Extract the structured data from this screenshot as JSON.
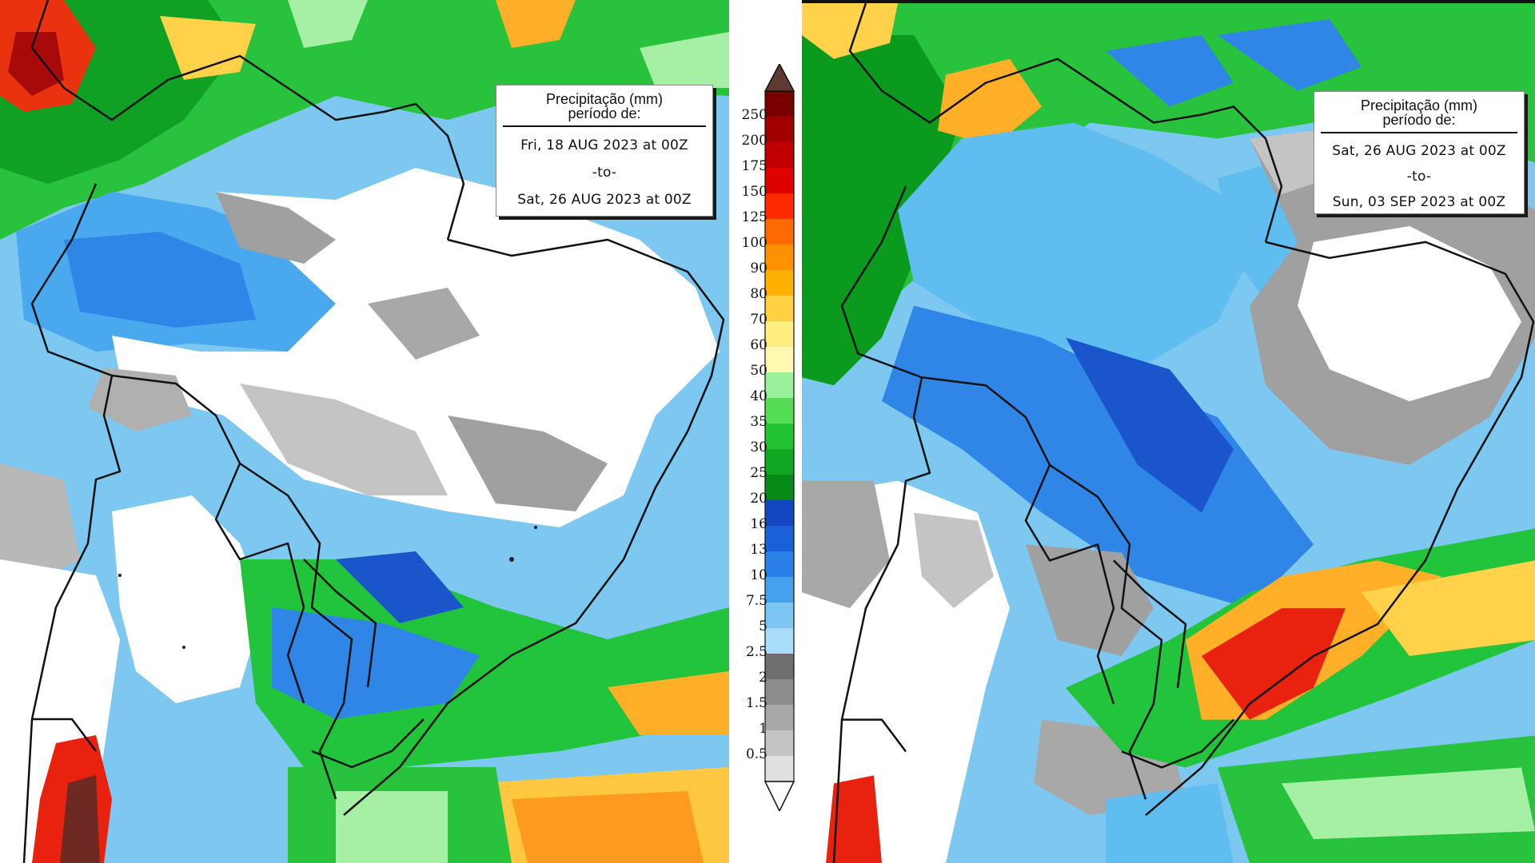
{
  "colors": {
    "white": "#ffffff",
    "grey_light": "#c8c8c8",
    "grey_mid": "#a0a0a0",
    "grey_dark": "#808080",
    "cyan": "#99e0f5",
    "light_blue": "#5fbdf0",
    "blue": "#2f86e6",
    "dark_blue": "#1a55cc",
    "green_dark": "#0a9a1e",
    "green": "#21c43a",
    "green_light": "#a6f0a6",
    "yellow": "#fff27a",
    "orange": "#ffb028",
    "red": "#e8220e",
    "dark_red": "#9a0a08",
    "maroon": "#5e3a32"
  },
  "panels": [
    {
      "title_line1": "Precipitação (mm)",
      "title_line2": "período de:",
      "date_from": "Fri, 18 AUG 2023 at 00Z",
      "to_label": "-to-",
      "date_to": "Sat, 26 AUG 2023 at 00Z"
    },
    {
      "title_line1": "Precipitação (mm)",
      "title_line2": "período de:",
      "date_from": "Sat, 26 AUG 2023 at 00Z",
      "to_label": "-to-",
      "date_to": "Sun, 03 SEP 2023 at 00Z"
    }
  ],
  "legend": {
    "title": "",
    "levels": [
      "250",
      "200",
      "175",
      "150",
      "125",
      "100",
      "90",
      "80",
      "70",
      "60",
      "50",
      "40",
      "35",
      "30",
      "25",
      "20",
      "16",
      "13",
      "10",
      "7.5",
      "5",
      "2.5",
      "2",
      "1.5",
      "1",
      "0.5"
    ],
    "segment_colors": [
      "#7a0000",
      "#a00000",
      "#c00000",
      "#e00000",
      "#ff2a00",
      "#ff6a00",
      "#ff9000",
      "#ffb000",
      "#ffd040",
      "#ffee80",
      "#fff8b0",
      "#9af09a",
      "#55dd55",
      "#22c433",
      "#10a822",
      "#078a18",
      "#1446c0",
      "#1a60d8",
      "#2a80e8",
      "#45a0f0",
      "#7cc6f5",
      "#a8dcf8",
      "#6e6e6e",
      "#8c8c8c",
      "#a8a8a8",
      "#c4c4c4",
      "#e0e0e0"
    ]
  }
}
